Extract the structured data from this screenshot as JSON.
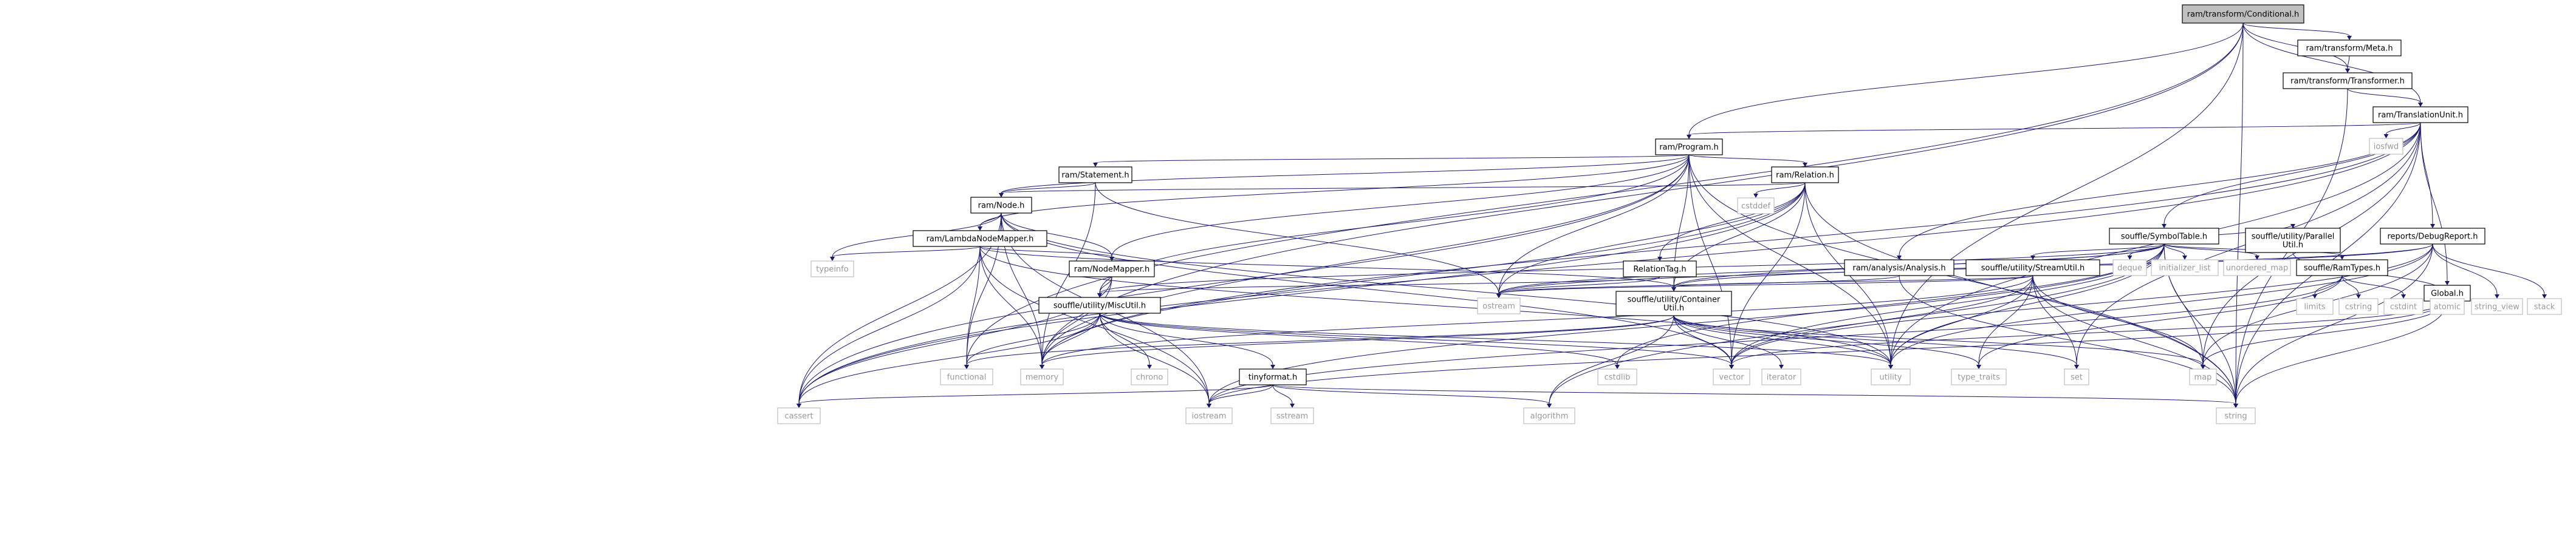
{
  "diagram": {
    "type": "include-dependency-graph",
    "nodes": [
      {
        "id": "cond",
        "label": [
          "ram/transform/Conditional.h"
        ],
        "kind": "root"
      },
      {
        "id": "meta",
        "label": [
          "ram/transform/Meta.h"
        ],
        "kind": "file"
      },
      {
        "id": "transformer",
        "label": [
          "ram/transform/Transformer.h"
        ],
        "kind": "file"
      },
      {
        "id": "tunit",
        "label": [
          "ram/TranslationUnit.h"
        ],
        "kind": "file"
      },
      {
        "id": "program",
        "label": [
          "ram/Program.h"
        ],
        "kind": "file"
      },
      {
        "id": "iosfwd",
        "label": [
          "iosfwd"
        ],
        "kind": "system"
      },
      {
        "id": "statement",
        "label": [
          "ram/Statement.h"
        ],
        "kind": "file"
      },
      {
        "id": "relation",
        "label": [
          "ram/Relation.h"
        ],
        "kind": "file"
      },
      {
        "id": "node",
        "label": [
          "ram/Node.h"
        ],
        "kind": "file"
      },
      {
        "id": "cstddef",
        "label": [
          "cstddef"
        ],
        "kind": "system"
      },
      {
        "id": "lambda",
        "label": [
          "ram/LambdaNodeMapper.h"
        ],
        "kind": "file"
      },
      {
        "id": "typeinfo",
        "label": [
          "typeinfo"
        ],
        "kind": "system"
      },
      {
        "id": "nodemapper",
        "label": [
          "ram/NodeMapper.h"
        ],
        "kind": "file"
      },
      {
        "id": "reltag",
        "label": [
          "RelationTag.h"
        ],
        "kind": "file"
      },
      {
        "id": "symtab",
        "label": [
          "souffle/SymbolTable.h"
        ],
        "kind": "file"
      },
      {
        "id": "analysis",
        "label": [
          "ram/analysis/Analysis.h"
        ],
        "kind": "file"
      },
      {
        "id": "streamutil",
        "label": [
          "souffle/utility/StreamUtil.h"
        ],
        "kind": "file"
      },
      {
        "id": "deque",
        "label": [
          "deque"
        ],
        "kind": "system"
      },
      {
        "id": "initlist",
        "label": [
          "initializer_list"
        ],
        "kind": "system"
      },
      {
        "id": "unordmap",
        "label": [
          "unordered_map"
        ],
        "kind": "system"
      },
      {
        "id": "ramtypes",
        "label": [
          "souffle/RamTypes.h"
        ],
        "kind": "file"
      },
      {
        "id": "parallel",
        "label": [
          "souffle/utility/Parallel",
          "Util.h"
        ],
        "kind": "file"
      },
      {
        "id": "debugrep",
        "label": [
          "reports/DebugReport.h"
        ],
        "kind": "file"
      },
      {
        "id": "global",
        "label": [
          "Global.h"
        ],
        "kind": "file"
      },
      {
        "id": "miscutil",
        "label": [
          "souffle/utility/MiscUtil.h"
        ],
        "kind": "file"
      },
      {
        "id": "container",
        "label": [
          "souffle/utility/Container",
          "Util.h"
        ],
        "kind": "file"
      },
      {
        "id": "ostream",
        "label": [
          "ostream"
        ],
        "kind": "system"
      },
      {
        "id": "limits",
        "label": [
          "limits"
        ],
        "kind": "system"
      },
      {
        "id": "cstring",
        "label": [
          "cstring"
        ],
        "kind": "system"
      },
      {
        "id": "cstdint",
        "label": [
          "cstdint"
        ],
        "kind": "system"
      },
      {
        "id": "atomic",
        "label": [
          "atomic"
        ],
        "kind": "system"
      },
      {
        "id": "stringview",
        "label": [
          "string_view"
        ],
        "kind": "system"
      },
      {
        "id": "stack",
        "label": [
          "stack"
        ],
        "kind": "system"
      },
      {
        "id": "functional",
        "label": [
          "functional"
        ],
        "kind": "system"
      },
      {
        "id": "memory",
        "label": [
          "memory"
        ],
        "kind": "system"
      },
      {
        "id": "chrono",
        "label": [
          "chrono"
        ],
        "kind": "system"
      },
      {
        "id": "tinyformat",
        "label": [
          "tinyformat.h"
        ],
        "kind": "file"
      },
      {
        "id": "cstdlib",
        "label": [
          "cstdlib"
        ],
        "kind": "system"
      },
      {
        "id": "vector",
        "label": [
          "vector"
        ],
        "kind": "system"
      },
      {
        "id": "iterator",
        "label": [
          "iterator"
        ],
        "kind": "system"
      },
      {
        "id": "utility",
        "label": [
          "utility"
        ],
        "kind": "system"
      },
      {
        "id": "typetraits",
        "label": [
          "type_traits"
        ],
        "kind": "system"
      },
      {
        "id": "set",
        "label": [
          "set"
        ],
        "kind": "system"
      },
      {
        "id": "map",
        "label": [
          "map"
        ],
        "kind": "system"
      },
      {
        "id": "cassert",
        "label": [
          "cassert"
        ],
        "kind": "system"
      },
      {
        "id": "iostream",
        "label": [
          "iostream"
        ],
        "kind": "system"
      },
      {
        "id": "sstream",
        "label": [
          "sstream"
        ],
        "kind": "system"
      },
      {
        "id": "algorithm",
        "label": [
          "algorithm"
        ],
        "kind": "system"
      },
      {
        "id": "string",
        "label": [
          "string"
        ],
        "kind": "system"
      }
    ],
    "edges": [
      [
        "cond",
        "meta"
      ],
      [
        "cond",
        "transformer"
      ],
      [
        "cond",
        "tunit"
      ],
      [
        "cond",
        "program"
      ],
      [
        "cond",
        "utility"
      ],
      [
        "cond",
        "memory"
      ],
      [
        "cond",
        "functional"
      ],
      [
        "cond",
        "string"
      ],
      [
        "meta",
        "transformer"
      ],
      [
        "transformer",
        "tunit"
      ],
      [
        "transformer",
        "string"
      ],
      [
        "tunit",
        "program"
      ],
      [
        "tunit",
        "iosfwd"
      ],
      [
        "tunit",
        "analysis"
      ],
      [
        "tunit",
        "symtab"
      ],
      [
        "tunit",
        "debugrep"
      ],
      [
        "tunit",
        "global"
      ],
      [
        "tunit",
        "cassert"
      ],
      [
        "tunit",
        "map"
      ],
      [
        "tunit",
        "memory"
      ],
      [
        "tunit",
        "string"
      ],
      [
        "tunit",
        "utility"
      ],
      [
        "tunit",
        "set"
      ],
      [
        "program",
        "statement"
      ],
      [
        "program",
        "relation"
      ],
      [
        "program",
        "node"
      ],
      [
        "program",
        "lambda"
      ],
      [
        "program",
        "nodemapper"
      ],
      [
        "program",
        "miscutil"
      ],
      [
        "program",
        "container"
      ],
      [
        "program",
        "ostream"
      ],
      [
        "program",
        "utility"
      ],
      [
        "program",
        "vector"
      ],
      [
        "program",
        "string"
      ],
      [
        "program",
        "cassert"
      ],
      [
        "program",
        "memory"
      ],
      [
        "statement",
        "node"
      ],
      [
        "statement",
        "ostream"
      ],
      [
        "statement",
        "memory"
      ],
      [
        "relation",
        "node"
      ],
      [
        "relation",
        "reltag"
      ],
      [
        "relation",
        "cstddef"
      ],
      [
        "relation",
        "container"
      ],
      [
        "relation",
        "ostream"
      ],
      [
        "relation",
        "utility"
      ],
      [
        "relation",
        "vector"
      ],
      [
        "relation",
        "string"
      ],
      [
        "relation",
        "memory"
      ],
      [
        "relation",
        "cassert"
      ],
      [
        "node",
        "lambda"
      ],
      [
        "node",
        "nodemapper"
      ],
      [
        "node",
        "typeinfo"
      ],
      [
        "node",
        "memory"
      ],
      [
        "node",
        "functional"
      ],
      [
        "node",
        "vector"
      ],
      [
        "node",
        "cassert"
      ],
      [
        "node",
        "iostream"
      ],
      [
        "node",
        "utility"
      ],
      [
        "lambda",
        "nodemapper"
      ],
      [
        "lambda",
        "container"
      ],
      [
        "lambda",
        "typeinfo"
      ],
      [
        "lambda",
        "functional"
      ],
      [
        "lambda",
        "memory"
      ],
      [
        "lambda",
        "cassert"
      ],
      [
        "lambda",
        "iostream"
      ],
      [
        "lambda",
        "utility"
      ],
      [
        "nodemapper",
        "miscutil"
      ],
      [
        "nodemapper",
        "cassert"
      ],
      [
        "nodemapper",
        "memory"
      ],
      [
        "reltag",
        "miscutil"
      ],
      [
        "reltag",
        "ostream"
      ],
      [
        "symtab",
        "streamutil"
      ],
      [
        "symtab",
        "ramtypes"
      ],
      [
        "symtab",
        "parallel"
      ],
      [
        "symtab",
        "container"
      ],
      [
        "symtab",
        "miscutil"
      ],
      [
        "symtab",
        "deque"
      ],
      [
        "symtab",
        "initlist"
      ],
      [
        "symtab",
        "unordmap"
      ],
      [
        "symtab",
        "iostream"
      ],
      [
        "symtab",
        "ostream"
      ],
      [
        "symtab",
        "algorithm"
      ],
      [
        "symtab",
        "cstdlib"
      ],
      [
        "symtab",
        "map"
      ],
      [
        "symtab",
        "string"
      ],
      [
        "symtab",
        "utility"
      ],
      [
        "symtab",
        "vector"
      ],
      [
        "analysis",
        "ostream"
      ],
      [
        "analysis",
        "string"
      ],
      [
        "streamutil",
        "container"
      ],
      [
        "streamutil",
        "ostream"
      ],
      [
        "streamutil",
        "vector"
      ],
      [
        "streamutil",
        "typetraits"
      ],
      [
        "streamutil",
        "set"
      ],
      [
        "streamutil",
        "map"
      ],
      [
        "streamutil",
        "memory"
      ],
      [
        "streamutil",
        "string"
      ],
      [
        "streamutil",
        "utility"
      ],
      [
        "ramtypes",
        "cstdint"
      ],
      [
        "ramtypes",
        "cstring"
      ],
      [
        "ramtypes",
        "limits"
      ],
      [
        "ramtypes",
        "typetraits"
      ],
      [
        "ramtypes",
        "iostream"
      ],
      [
        "parallel",
        "atomic"
      ],
      [
        "debugrep",
        "container"
      ],
      [
        "debugrep",
        "stringview"
      ],
      [
        "debugrep",
        "stack"
      ],
      [
        "debugrep",
        "ostream"
      ],
      [
        "debugrep",
        "string"
      ],
      [
        "debugrep",
        "vector"
      ],
      [
        "debugrep",
        "utility"
      ],
      [
        "debugrep",
        "map"
      ],
      [
        "global",
        "map"
      ],
      [
        "global",
        "string"
      ],
      [
        "global",
        "iostream"
      ],
      [
        "global",
        "vector"
      ],
      [
        "miscutil",
        "tinyformat"
      ],
      [
        "miscutil",
        "chrono"
      ],
      [
        "miscutil",
        "cassert"
      ],
      [
        "miscutil",
        "iostream"
      ],
      [
        "miscutil",
        "memory"
      ],
      [
        "miscutil",
        "functional"
      ],
      [
        "miscutil",
        "cstdlib"
      ],
      [
        "miscutil",
        "utility"
      ],
      [
        "miscutil",
        "vector"
      ],
      [
        "container",
        "vector"
      ],
      [
        "container",
        "iterator"
      ],
      [
        "container",
        "utility"
      ],
      [
        "container",
        "typetraits"
      ],
      [
        "container",
        "set"
      ],
      [
        "container",
        "map"
      ],
      [
        "container",
        "algorithm"
      ],
      [
        "container",
        "memory"
      ],
      [
        "container",
        "functional"
      ],
      [
        "tinyformat",
        "cassert"
      ],
      [
        "tinyformat",
        "iostream"
      ],
      [
        "tinyformat",
        "sstream"
      ],
      [
        "tinyformat",
        "algorithm"
      ],
      [
        "tinyformat",
        "string"
      ]
    ]
  }
}
